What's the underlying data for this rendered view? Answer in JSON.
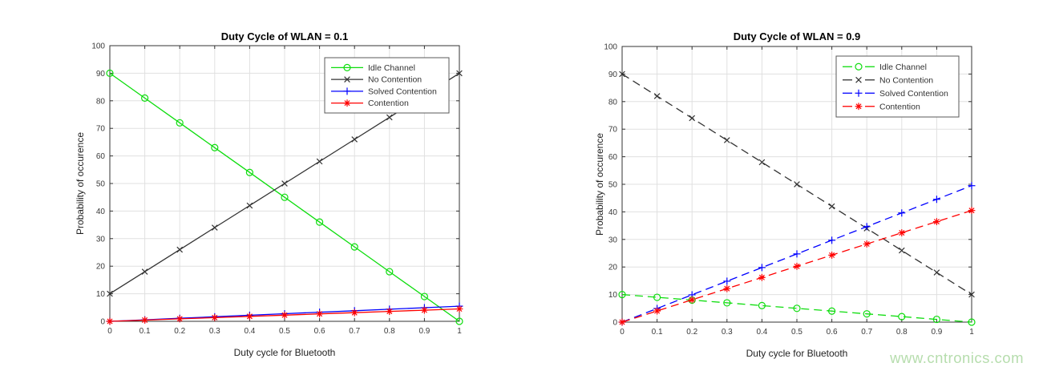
{
  "watermark": {
    "text": "www.cntronics.com",
    "color": "#b6ddad"
  },
  "style": {
    "background": "#ffffff",
    "grid_color": "#e0e0e0",
    "axis_color": "#333333",
    "tick_label_color": "#3a3a3a",
    "legend_border_color": "#595959",
    "legend_background": "#ffffff"
  },
  "chart_data": [
    {
      "type": "line",
      "title": "Duty Cycle of WLAN = 0.1",
      "xlabel": "Duty cycle for Bluetooth",
      "ylabel": "Probability of occurence",
      "xlim": [
        0,
        1
      ],
      "ylim": [
        0,
        100
      ],
      "grid": true,
      "line_style": "solid",
      "legend_position": "upper-right-inside",
      "xticks": [
        0,
        0.1,
        0.2,
        0.3,
        0.4,
        0.5,
        0.6,
        0.7,
        0.8,
        0.9,
        1
      ],
      "xtick_labels": [
        "0",
        "0.1",
        "0.2",
        "0.3",
        "0.4",
        "0.5",
        "0.6",
        "0.7",
        "0.8",
        "0.9",
        "1"
      ],
      "yticks": [
        0,
        10,
        20,
        30,
        40,
        50,
        60,
        70,
        80,
        90,
        100
      ],
      "ytick_labels": [
        "0",
        "10",
        "20",
        "30",
        "40",
        "50",
        "60",
        "70",
        "80",
        "90",
        "100"
      ],
      "x": [
        0,
        0.1,
        0.2,
        0.3,
        0.4,
        0.5,
        0.6,
        0.7,
        0.8,
        0.9,
        1
      ],
      "series": [
        {
          "name": "Idle Channel",
          "color": "#0ddd0d",
          "marker": "circle",
          "values": [
            90,
            81,
            72,
            63,
            54,
            45,
            36,
            27,
            18,
            9,
            0
          ]
        },
        {
          "name": "No Contention",
          "color": "#333333",
          "marker": "x",
          "values": [
            10,
            18,
            26,
            34,
            42,
            50,
            58,
            66,
            74,
            82,
            90
          ]
        },
        {
          "name": "Solved Contention",
          "color": "#0000ff",
          "marker": "plus",
          "values": [
            0,
            0.55,
            1.1,
            1.65,
            2.2,
            2.75,
            3.3,
            3.85,
            4.4,
            4.95,
            5.5
          ]
        },
        {
          "name": "Contention",
          "color": "#ff0000",
          "marker": "asterisk",
          "values": [
            0,
            0.45,
            0.9,
            1.35,
            1.8,
            2.25,
            2.7,
            3.15,
            3.6,
            4.05,
            4.5
          ]
        }
      ]
    },
    {
      "type": "line",
      "title": "Duty Cycle of WLAN = 0.9",
      "xlabel": "Duty cycle for Bluetooth",
      "ylabel": "Probability of occurence",
      "xlim": [
        0,
        1
      ],
      "ylim": [
        0,
        100
      ],
      "grid": true,
      "line_style": "dashed",
      "legend_position": "upper-right-inside",
      "xticks": [
        0,
        0.1,
        0.2,
        0.3,
        0.4,
        0.5,
        0.6,
        0.7,
        0.8,
        0.9,
        1
      ],
      "xtick_labels": [
        "0",
        "0.1",
        "0.2",
        "0.3",
        "0.4",
        "0.5",
        "0.6",
        "0.7",
        "0.8",
        "0.9",
        "1"
      ],
      "yticks": [
        0,
        10,
        20,
        30,
        40,
        50,
        60,
        70,
        80,
        90,
        100
      ],
      "ytick_labels": [
        "0",
        "10",
        "20",
        "30",
        "40",
        "50",
        "60",
        "70",
        "80",
        "90",
        "100"
      ],
      "x": [
        0,
        0.1,
        0.2,
        0.3,
        0.4,
        0.5,
        0.6,
        0.7,
        0.8,
        0.9,
        1
      ],
      "series": [
        {
          "name": "Idle Channel",
          "color": "#0ddd0d",
          "marker": "circle",
          "values": [
            10,
            9,
            8,
            7,
            6,
            5,
            4,
            3,
            2,
            1,
            0
          ]
        },
        {
          "name": "No Contention",
          "color": "#333333",
          "marker": "x",
          "values": [
            90,
            82,
            74,
            66,
            58,
            50,
            42,
            34,
            26,
            18,
            10
          ]
        },
        {
          "name": "Solved Contention",
          "color": "#0000ff",
          "marker": "plus",
          "values": [
            0,
            4.95,
            9.9,
            14.85,
            19.8,
            24.75,
            29.7,
            34.65,
            39.6,
            44.55,
            49.5
          ]
        },
        {
          "name": "Contention",
          "color": "#ff0000",
          "marker": "asterisk",
          "values": [
            0,
            4.05,
            8.1,
            12.15,
            16.2,
            20.25,
            24.3,
            28.35,
            32.4,
            36.45,
            40.5
          ]
        }
      ]
    }
  ]
}
